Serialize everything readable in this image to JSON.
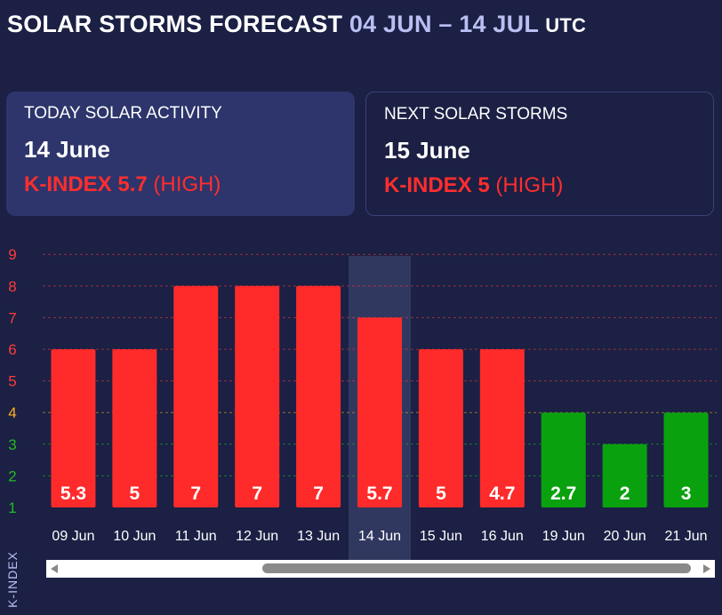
{
  "header": {
    "title": "SOLAR STORMS FORECAST",
    "range": "04 JUN – 14 JUL",
    "tz": "UTC"
  },
  "today": {
    "label": "TODAY SOLAR ACTIVITY",
    "date": "14 June",
    "k_label": "K-INDEX 5.7",
    "level": "(HIGH)"
  },
  "next": {
    "label": "NEXT SOLAR STORMS",
    "date": "15 June",
    "k_label": "K-INDEX 5",
    "level": "(HIGH)"
  },
  "colors": {
    "high": "#ff2b2b",
    "low": "#0aa10f",
    "background": "#1b2044",
    "tick_high": "#ff3b3b",
    "tick_mid": "#ffb020",
    "tick_low": "#22bb22",
    "highlight": "#3a4068"
  },
  "chart_data": {
    "type": "bar",
    "categories": [
      "09 Jun",
      "10 Jun",
      "11 Jun",
      "12 Jun",
      "13 Jun",
      "14 Jun",
      "15 Jun",
      "16 Jun",
      "19 Jun",
      "20 Jun",
      "21 Jun"
    ],
    "values": [
      5.3,
      5,
      7,
      7,
      7,
      5.7,
      5,
      4.7,
      2.7,
      2,
      3
    ],
    "value_labels": [
      "5.3",
      "5",
      "7",
      "7",
      "7",
      "5.7",
      "5",
      "4.7",
      "2.7",
      "2",
      "3"
    ],
    "bar_heights": [
      5,
      5,
      7,
      7,
      7,
      6,
      5,
      5,
      3,
      2,
      3
    ],
    "bar_colors": [
      "high",
      "high",
      "high",
      "high",
      "high",
      "high",
      "high",
      "high",
      "low",
      "low",
      "low"
    ],
    "highlighted": "14 Jun",
    "ylabel": "K-INDEX",
    "yticks": [
      1,
      2,
      3,
      4,
      5,
      6,
      7,
      8,
      9
    ],
    "ylim": [
      1,
      9
    ],
    "grid": true
  }
}
